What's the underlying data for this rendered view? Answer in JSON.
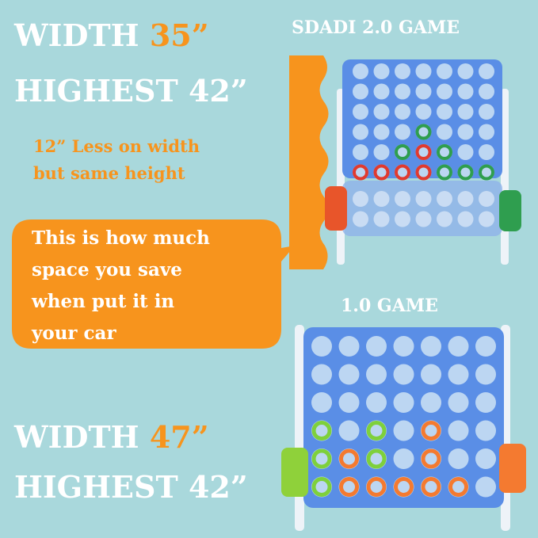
{
  "top_spec": {
    "width_label": "WIDTH",
    "width_value": "35”",
    "height_text": "HIGHEST 42”"
  },
  "top_game_title": "SDADI 2.0 GAME",
  "note": {
    "line1": "12” Less on width",
    "line2": "but same height"
  },
  "bubble": {
    "lines": [
      "This is how much",
      "space you save",
      "when put it in",
      "your car"
    ]
  },
  "bottom_game_title": "1.0 GAME",
  "bottom_spec": {
    "width_label": "WIDTH",
    "width_value": "47”",
    "height_text": "HIGHEST 42”"
  }
}
